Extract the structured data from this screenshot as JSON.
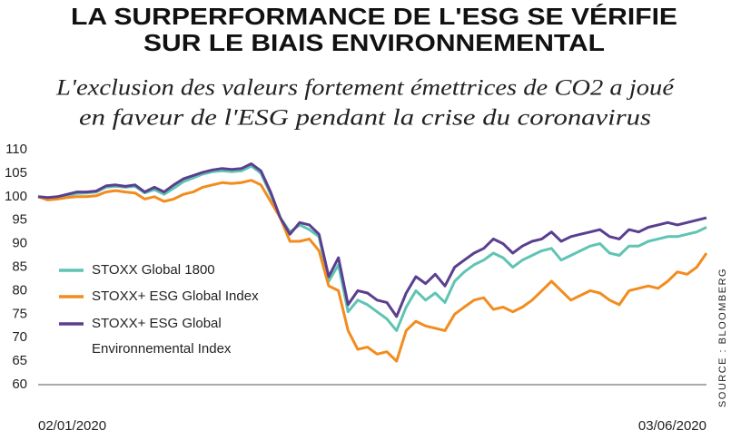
{
  "chart_data": {
    "type": "line",
    "title": [
      "LA SURPERFORMANCE DE L'ESG SE VÉRIFIE",
      "SUR LE BIAIS ENVIRONNEMENTAL"
    ],
    "subtitle": [
      "L'exclusion des valeurs fortement émettrices de CO2 a joué",
      "en faveur de l'ESG  pendant la crise du coronavirus"
    ],
    "source": "SOURCE : BLOOMBERG",
    "categories": [
      "02/01/2020",
      null,
      null,
      null,
      null,
      null,
      null,
      null,
      null,
      null,
      null,
      null,
      null,
      null,
      null,
      null,
      null,
      null,
      null,
      null,
      null,
      null,
      null,
      null,
      null,
      null,
      null,
      null,
      null,
      null,
      null,
      null,
      null,
      null,
      null,
      null,
      null,
      null,
      null,
      null,
      null,
      null,
      null,
      null,
      null,
      null,
      null,
      null,
      null,
      null,
      null,
      null,
      null,
      null,
      null,
      null,
      null,
      null,
      null,
      null,
      null,
      null,
      null,
      null,
      null,
      null,
      null,
      null,
      null,
      "03/06/2020"
    ],
    "ylim": [
      60,
      110
    ],
    "yticks": [
      60,
      65,
      70,
      75,
      80,
      85,
      90,
      95,
      100,
      105,
      110
    ],
    "grid": false,
    "legend": "left",
    "series": [
      {
        "name": "STOXX Global 1800",
        "color": "#5fc4b4",
        "values": [
          100,
          99.7,
          99.8,
          100.2,
          100.7,
          100.8,
          101,
          102,
          102.2,
          102,
          102.2,
          100.8,
          101.5,
          100.5,
          101.8,
          103.2,
          104,
          104.8,
          105.3,
          105.5,
          105.3,
          105.5,
          106.5,
          105,
          100.5,
          95.5,
          92.5,
          94,
          93,
          91.5,
          82,
          85.5,
          75.5,
          78,
          77,
          75.5,
          74,
          71.5,
          76.5,
          80,
          78,
          79.5,
          77.5,
          82,
          84,
          85.5,
          86.5,
          88,
          87,
          85,
          86.5,
          87.5,
          88.5,
          89,
          86.5,
          87.5,
          88.5,
          89.5,
          90,
          88,
          87.5,
          89.5,
          89.5,
          90.5,
          91,
          91.5,
          91.5,
          92,
          92.5,
          93.5
        ]
      },
      {
        "name": "STOXX+ ESG Global Index",
        "color": "#f28c1e",
        "values": [
          100,
          99.3,
          99.5,
          99.8,
          100,
          100,
          100.2,
          101,
          101.3,
          101,
          100.8,
          99.5,
          100,
          99,
          99.5,
          100.5,
          101,
          102,
          102.5,
          103,
          102.8,
          103,
          103.5,
          102.5,
          99,
          95.5,
          90.5,
          90.5,
          91,
          88.5,
          81,
          80,
          71.5,
          67.5,
          68,
          66.5,
          67,
          65,
          71.5,
          73.5,
          72.5,
          72,
          71.5,
          75,
          76.5,
          78,
          78.5,
          76,
          76.5,
          75.5,
          76.5,
          78,
          80,
          82,
          80,
          78,
          79,
          80,
          79.5,
          78,
          77,
          80,
          80.5,
          81,
          80.5,
          82,
          84,
          83.5,
          85,
          88
        ]
      },
      {
        "name": "STOXX+ ESG Global Environnemental Index",
        "color": "#5b3f8f",
        "values": [
          100,
          99.8,
          100,
          100.5,
          101,
          101,
          101.2,
          102.3,
          102.5,
          102.2,
          102.5,
          101,
          102,
          101,
          102.5,
          103.8,
          104.5,
          105.2,
          105.7,
          106,
          105.8,
          106,
          107,
          105.5,
          101,
          95.5,
          92,
          94.5,
          94,
          92,
          83,
          87,
          77,
          80,
          79.5,
          78,
          77.5,
          74.5,
          79.5,
          83,
          81.5,
          83.5,
          81,
          85,
          86.5,
          88,
          89,
          91,
          90,
          88,
          89.5,
          90.5,
          91,
          92.5,
          90.5,
          91.5,
          92,
          92.5,
          93,
          91.5,
          91,
          93,
          92.5,
          93.5,
          94,
          94.5,
          94,
          94.5,
          95,
          95.5
        ]
      }
    ]
  }
}
